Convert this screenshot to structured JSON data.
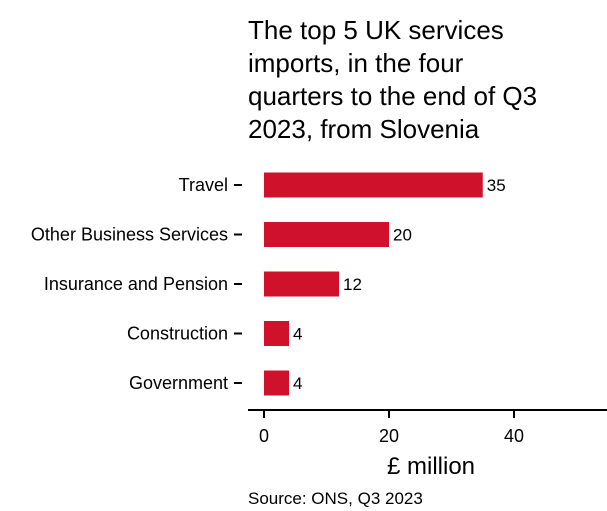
{
  "chart_data": {
    "type": "bar",
    "orientation": "horizontal",
    "title_lines": [
      "The top 5 UK services",
      "imports, in the four",
      "quarters to the end of Q3",
      "2023, from Slovenia"
    ],
    "categories": [
      "Travel",
      "Other Business Services",
      "Insurance and Pension",
      "Construction",
      "Government"
    ],
    "values": [
      35,
      20,
      12,
      4,
      4
    ],
    "data_labels": [
      "35",
      "20",
      "12",
      "4",
      "4"
    ],
    "xlabel": "£ million",
    "ylabel": "",
    "xlim": [
      0,
      55
    ],
    "x_ticks": [
      0,
      20,
      40
    ],
    "x_tick_labels": [
      "0",
      "20",
      "40"
    ],
    "grid": false,
    "legend": "none",
    "bar_color": "#d0112b",
    "source": "Source: ONS, Q3 2023"
  }
}
